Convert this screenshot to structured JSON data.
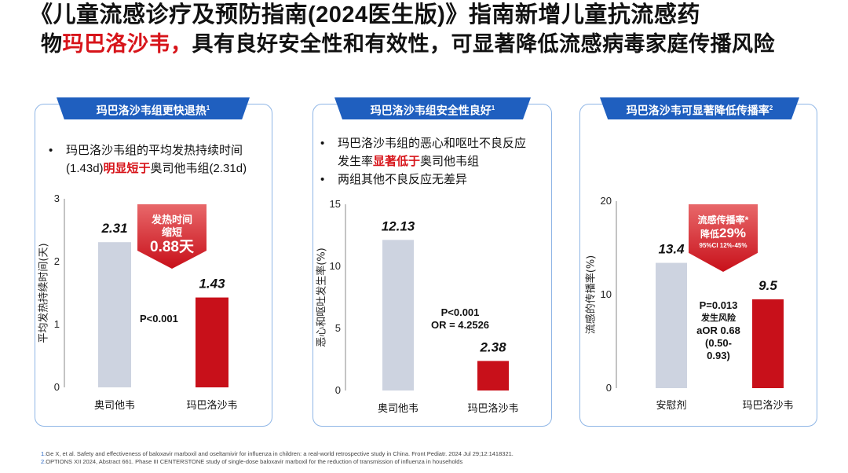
{
  "title": {
    "line1": "《儿童流感诊疗及预防指南(2024医生版)》指南新增儿童抗流感药",
    "line2_pre": "物",
    "line2_highlight": "玛巴洛沙韦，",
    "line2_post": "具有良好安全性和有效性，可显著降低流感病毒家庭传播风险"
  },
  "panels": [
    {
      "tab": "玛巴洛沙韦组更快退热",
      "tab_sup": "1",
      "bullet1_a": "玛巴洛沙韦组的平均发热持续时间",
      "bullet1_b": "(1.43d)",
      "bullet1_red": "明显短于",
      "bullet1_c": "奥司他韦组(2.31d)",
      "callout_line1": "发热时间",
      "callout_line2": "缩短",
      "callout_value": "0.88天",
      "note": "P<0.001"
    },
    {
      "tab": "玛巴洛沙韦组安全性良好",
      "tab_sup": "1",
      "bullet1_a": "玛巴洛沙韦组的恶心和呕吐不良反应",
      "bullet1_b": "发生率",
      "bullet1_red": "显著低于",
      "bullet1_c": "奥司他韦组",
      "bullet2": "两组其他不良反应无差异",
      "note_line1": "P<0.001",
      "note_line2": "OR = 4.2526"
    },
    {
      "tab": "玛巴洛沙韦可显著降低传播率",
      "tab_sup": "2",
      "callout_line1": "流感传播率*",
      "callout_line2_pre": "降低",
      "callout_value": "29%",
      "callout_ci": "95%CI 12%-45%",
      "note_line1": "P=0.013",
      "note_line2": "发生风险",
      "note_line3": "aOR 0.68",
      "note_line4": "(0.50-",
      "note_line5": "0.93)"
    }
  ],
  "colors": {
    "control": "#cdd3e0",
    "baloxavir": "#c8101a",
    "tab": "#1f5fbf"
  },
  "chart_data": [
    {
      "type": "bar",
      "categories": [
        "奥司他韦",
        "玛巴洛沙韦"
      ],
      "values": [
        2.31,
        1.43
      ],
      "labels": [
        "2.31",
        "1.43"
      ],
      "ylabel": "平均发热持续时间(天)",
      "ylim": [
        0,
        3
      ],
      "yticks": [
        "0",
        "1",
        "2",
        "3"
      ]
    },
    {
      "type": "bar",
      "categories": [
        "奥司他韦",
        "玛巴洛沙韦"
      ],
      "values": [
        12.13,
        2.38
      ],
      "labels": [
        "12.13",
        "2.38"
      ],
      "ylabel": "恶心和呕吐发生率(%)",
      "ylim": [
        0,
        15
      ],
      "yticks": [
        "0",
        "5",
        "10",
        "15"
      ]
    },
    {
      "type": "bar",
      "categories": [
        "安慰剂",
        "玛巴洛沙韦"
      ],
      "values": [
        13.4,
        9.5
      ],
      "labels": [
        "13.4",
        "9.5"
      ],
      "ylabel": "流感的传播率(%)",
      "ylim": [
        0,
        20
      ],
      "yticks": [
        "0",
        "10",
        "20"
      ]
    }
  ],
  "references": [
    {
      "num": "1.",
      "text": "Ge X, et al. Safety and effectiveness of baloxavir marboxil and oseltamivir for influenza in children: a real-world retrospective study in China. Front Pediatr. 2024 Jul 29;12:1418321."
    },
    {
      "num": "2.",
      "text": "OPTIONS XII 2024, Abstract 661. Phase III CENTERSTONE study of single-dose baloxavir marboxil for the reduction of transmission of influenza in households"
    }
  ]
}
